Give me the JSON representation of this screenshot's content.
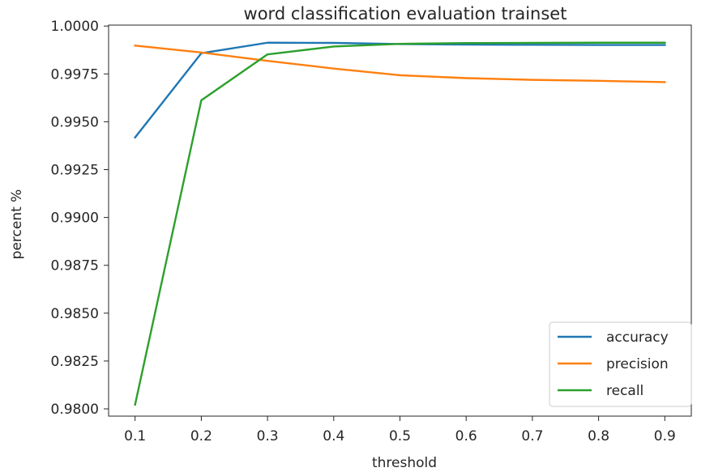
{
  "chart_data": {
    "type": "line",
    "title": "word classification evaluation trainset",
    "xlabel": "threshold",
    "ylabel": "percent %",
    "x": [
      0.1,
      0.2,
      0.3,
      0.4,
      0.5,
      0.6,
      0.7,
      0.8,
      0.9
    ],
    "xticks": [
      "0.1",
      "0.2",
      "0.3",
      "0.4",
      "0.5",
      "0.6",
      "0.7",
      "0.8",
      "0.9"
    ],
    "yticks": [
      "0.9800",
      "0.9825",
      "0.9850",
      "0.9875",
      "0.9900",
      "0.9925",
      "0.9950",
      "0.9975",
      "1.0000"
    ],
    "xlim": [
      0.06,
      0.94
    ],
    "ylim": [
      0.97962,
      1.00005
    ],
    "grid": false,
    "legend_position": "lower-right",
    "series": [
      {
        "name": "accuracy",
        "color": "#1f77b4",
        "values": [
          0.99418,
          0.99858,
          0.99913,
          0.99912,
          0.99906,
          0.99903,
          0.99902,
          0.99901,
          0.99901
        ]
      },
      {
        "name": "precision",
        "color": "#ff7f0e",
        "values": [
          0.99898,
          0.99862,
          0.99818,
          0.99778,
          0.99743,
          0.99728,
          0.99719,
          0.99714,
          0.99707
        ]
      },
      {
        "name": "recall",
        "color": "#2ca02c",
        "values": [
          0.98022,
          0.99612,
          0.99852,
          0.99893,
          0.99907,
          0.99911,
          0.99912,
          0.99913,
          0.99913
        ]
      }
    ]
  }
}
